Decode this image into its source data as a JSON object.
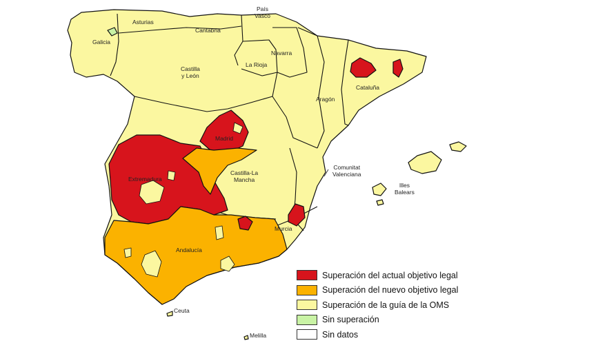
{
  "map": {
    "colors": {
      "red": "#d7141c",
      "orange": "#fbb200",
      "yellow": "#fbf7a0",
      "green": "#c9f3a5",
      "white": "#ffffff",
      "border": "#111111"
    },
    "regions": [
      {
        "id": "galicia",
        "label": "Galicia",
        "status": "yellow"
      },
      {
        "id": "asturias",
        "label": "Asturias",
        "status": "yellow"
      },
      {
        "id": "cantabria",
        "label": "Cantabria",
        "status": "yellow"
      },
      {
        "id": "pais-vasco",
        "label": "País\nVasco",
        "status": "yellow"
      },
      {
        "id": "navarra",
        "label": "Navarra",
        "status": "yellow"
      },
      {
        "id": "la-rioja",
        "label": "La Rioja",
        "status": "yellow"
      },
      {
        "id": "castilla-leon",
        "label": "Castilla\ny León",
        "status": "yellow"
      },
      {
        "id": "aragon",
        "label": "Aragón",
        "status": "yellow"
      },
      {
        "id": "cataluna",
        "label": "Cataluña",
        "status": "yellow"
      },
      {
        "id": "madrid",
        "label": "Madrid",
        "status": "red"
      },
      {
        "id": "extremadura",
        "label": "Extremadura",
        "status": "red"
      },
      {
        "id": "castilla-la-mancha",
        "label": "Castilla-La\nMancha",
        "status": "yellow"
      },
      {
        "id": "comunitat-valenciana",
        "label": "Comunitat\nValenciana",
        "status": "yellow"
      },
      {
        "id": "murcia",
        "label": "Murcia",
        "status": "yellow"
      },
      {
        "id": "andalucia",
        "label": "Andalucía",
        "status": "orange"
      },
      {
        "id": "illes-balears",
        "label": "Illes\nBalears",
        "status": "yellow"
      },
      {
        "id": "ceuta",
        "label": "Ceuta",
        "status": "yellow"
      },
      {
        "id": "melilla",
        "label": "Melilla",
        "status": "yellow"
      }
    ]
  },
  "legend": [
    {
      "label": "Superación del actual objetivo legal",
      "color": "#d7141c"
    },
    {
      "label": "Superación del nuevo objetivo legal",
      "color": "#fbb200"
    },
    {
      "label": "Superación de la guía de la OMS",
      "color": "#fbf7a0"
    },
    {
      "label": "Sin superación",
      "color": "#c9f3a5"
    },
    {
      "label": "Sin datos",
      "color": "#ffffff"
    }
  ]
}
